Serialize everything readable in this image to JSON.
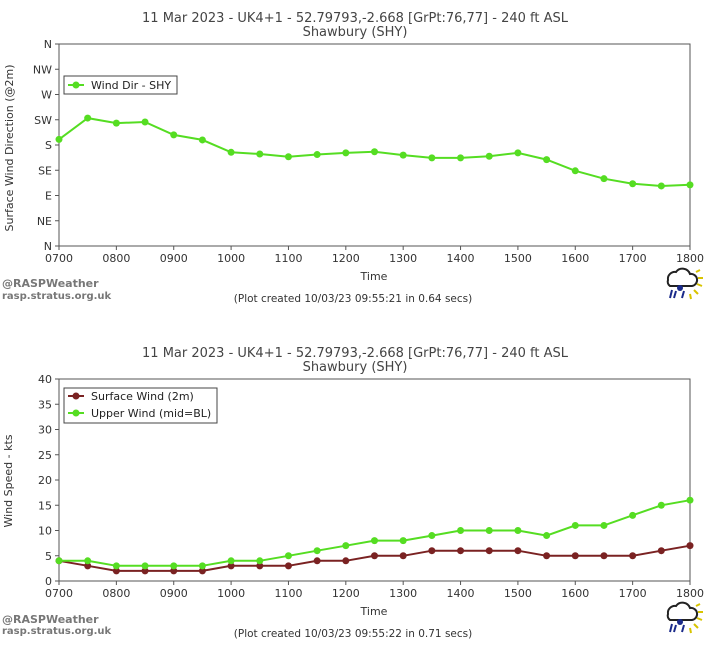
{
  "chart_data": [
    {
      "type": "line",
      "title": "11 Mar 2023 - UK4+1 - 52.79793,-2.668 [GrPt:76,77]  - 240 ft ASL",
      "subtitle": "Shawbury (SHY)",
      "xlabel": "Time",
      "ylabel": "Surface Wind Direction (@2m)",
      "x_ticks": [
        "0700",
        "0800",
        "0900",
        "1000",
        "1100",
        "1200",
        "1300",
        "1400",
        "1500",
        "1600",
        "1700",
        "1800"
      ],
      "y_ticks": [
        "N",
        "NE",
        "E",
        "SE",
        "S",
        "SW",
        "W",
        "NW",
        "N"
      ],
      "xlim": [
        7,
        18
      ],
      "ylim": [
        0,
        360
      ],
      "legend": "top-left",
      "series": [
        {
          "name": "Wind Dir - SHY",
          "color": "#55dd22",
          "x": [
            7,
            7.5,
            8,
            8.5,
            9,
            9.5,
            10,
            10.5,
            11,
            11.5,
            12,
            12.5,
            13,
            13.5,
            14,
            14.5,
            15,
            15.5,
            16,
            16.5,
            17,
            17.5,
            18
          ],
          "values": [
            190,
            228,
            219,
            221,
            198,
            189,
            167,
            164,
            159,
            163,
            166,
            168,
            162,
            157,
            157,
            160,
            166,
            154,
            134,
            120,
            111,
            107,
            109
          ]
        }
      ],
      "footer": "(Plot created 10/03/23 09:55:21 in 0.64 secs)",
      "credit": "@RASPWeather",
      "credit_url": "rasp.stratus.org.uk"
    },
    {
      "type": "line",
      "title": "11 Mar 2023 - UK4+1 - 52.79793,-2.668 [GrPt:76,77]  - 240 ft ASL",
      "subtitle": "Shawbury (SHY)",
      "xlabel": "Time",
      "ylabel": "Wind Speed - kts",
      "x_ticks": [
        "0700",
        "0800",
        "0900",
        "1000",
        "1100",
        "1200",
        "1300",
        "1400",
        "1500",
        "1600",
        "1700",
        "1800"
      ],
      "y_ticks": [
        "0",
        "5",
        "10",
        "15",
        "20",
        "25",
        "30",
        "35",
        "40"
      ],
      "xlim": [
        7,
        18
      ],
      "ylim": [
        0,
        40
      ],
      "legend": "top-left",
      "series": [
        {
          "name": "Surface Wind (2m)",
          "color": "#7a2222",
          "x": [
            7,
            7.5,
            8,
            8.5,
            9,
            9.5,
            10,
            10.5,
            11,
            11.5,
            12,
            12.5,
            13,
            13.5,
            14,
            14.5,
            15,
            15.5,
            16,
            16.5,
            17,
            17.5,
            18
          ],
          "values": [
            4,
            3,
            2,
            2,
            2,
            2,
            3,
            3,
            3,
            4,
            4,
            5,
            5,
            6,
            6,
            6,
            6,
            5,
            5,
            5,
            5,
            6,
            7
          ]
        },
        {
          "name": "Upper Wind (mid=BL)",
          "color": "#55dd22",
          "x": [
            7,
            7.5,
            8,
            8.5,
            9,
            9.5,
            10,
            10.5,
            11,
            11.5,
            12,
            12.5,
            13,
            13.5,
            14,
            14.5,
            15,
            15.5,
            16,
            16.5,
            17,
            17.5,
            18
          ],
          "values": [
            4,
            4,
            3,
            3,
            3,
            3,
            4,
            4,
            5,
            6,
            7,
            8,
            8,
            9,
            10,
            10,
            10,
            9,
            11,
            11,
            13,
            15,
            16
          ]
        }
      ],
      "footer": "(Plot created 10/03/23 09:55:22 in 0.71 secs)",
      "credit": "@RASPWeather",
      "credit_url": "rasp.stratus.org.uk"
    }
  ]
}
